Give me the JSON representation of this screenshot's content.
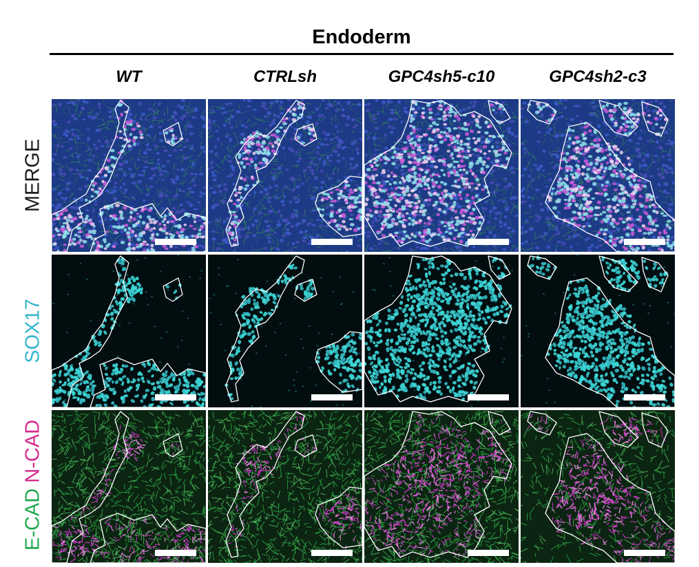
{
  "figure": {
    "title": "Endoderm",
    "columns": [
      "WT",
      "CTRLsh",
      "GPC4sh5-c10",
      "GPC4sh2-c3"
    ],
    "rows": [
      {
        "key": "merge",
        "parts": [
          {
            "text": "MERGE",
            "color": "#1a1a1a"
          }
        ]
      },
      {
        "key": "sox17",
        "parts": [
          {
            "text": "SOX17",
            "color": "#35b6cc"
          }
        ]
      },
      {
        "key": "cad",
        "parts": [
          {
            "text": "E-CAD",
            "color": "#1fa84f"
          },
          {
            "text": " ",
            "color": "#000000"
          },
          {
            "text": "N-CAD",
            "color": "#d42a8f"
          }
        ]
      }
    ]
  },
  "colors": {
    "outline": "#ffffff",
    "sox17": "#3ed8d8",
    "ecad": "#2fb84a",
    "ncad": "#d93ad3",
    "dapi": "#2f4fb0",
    "background_dark": "#020d10"
  }
}
